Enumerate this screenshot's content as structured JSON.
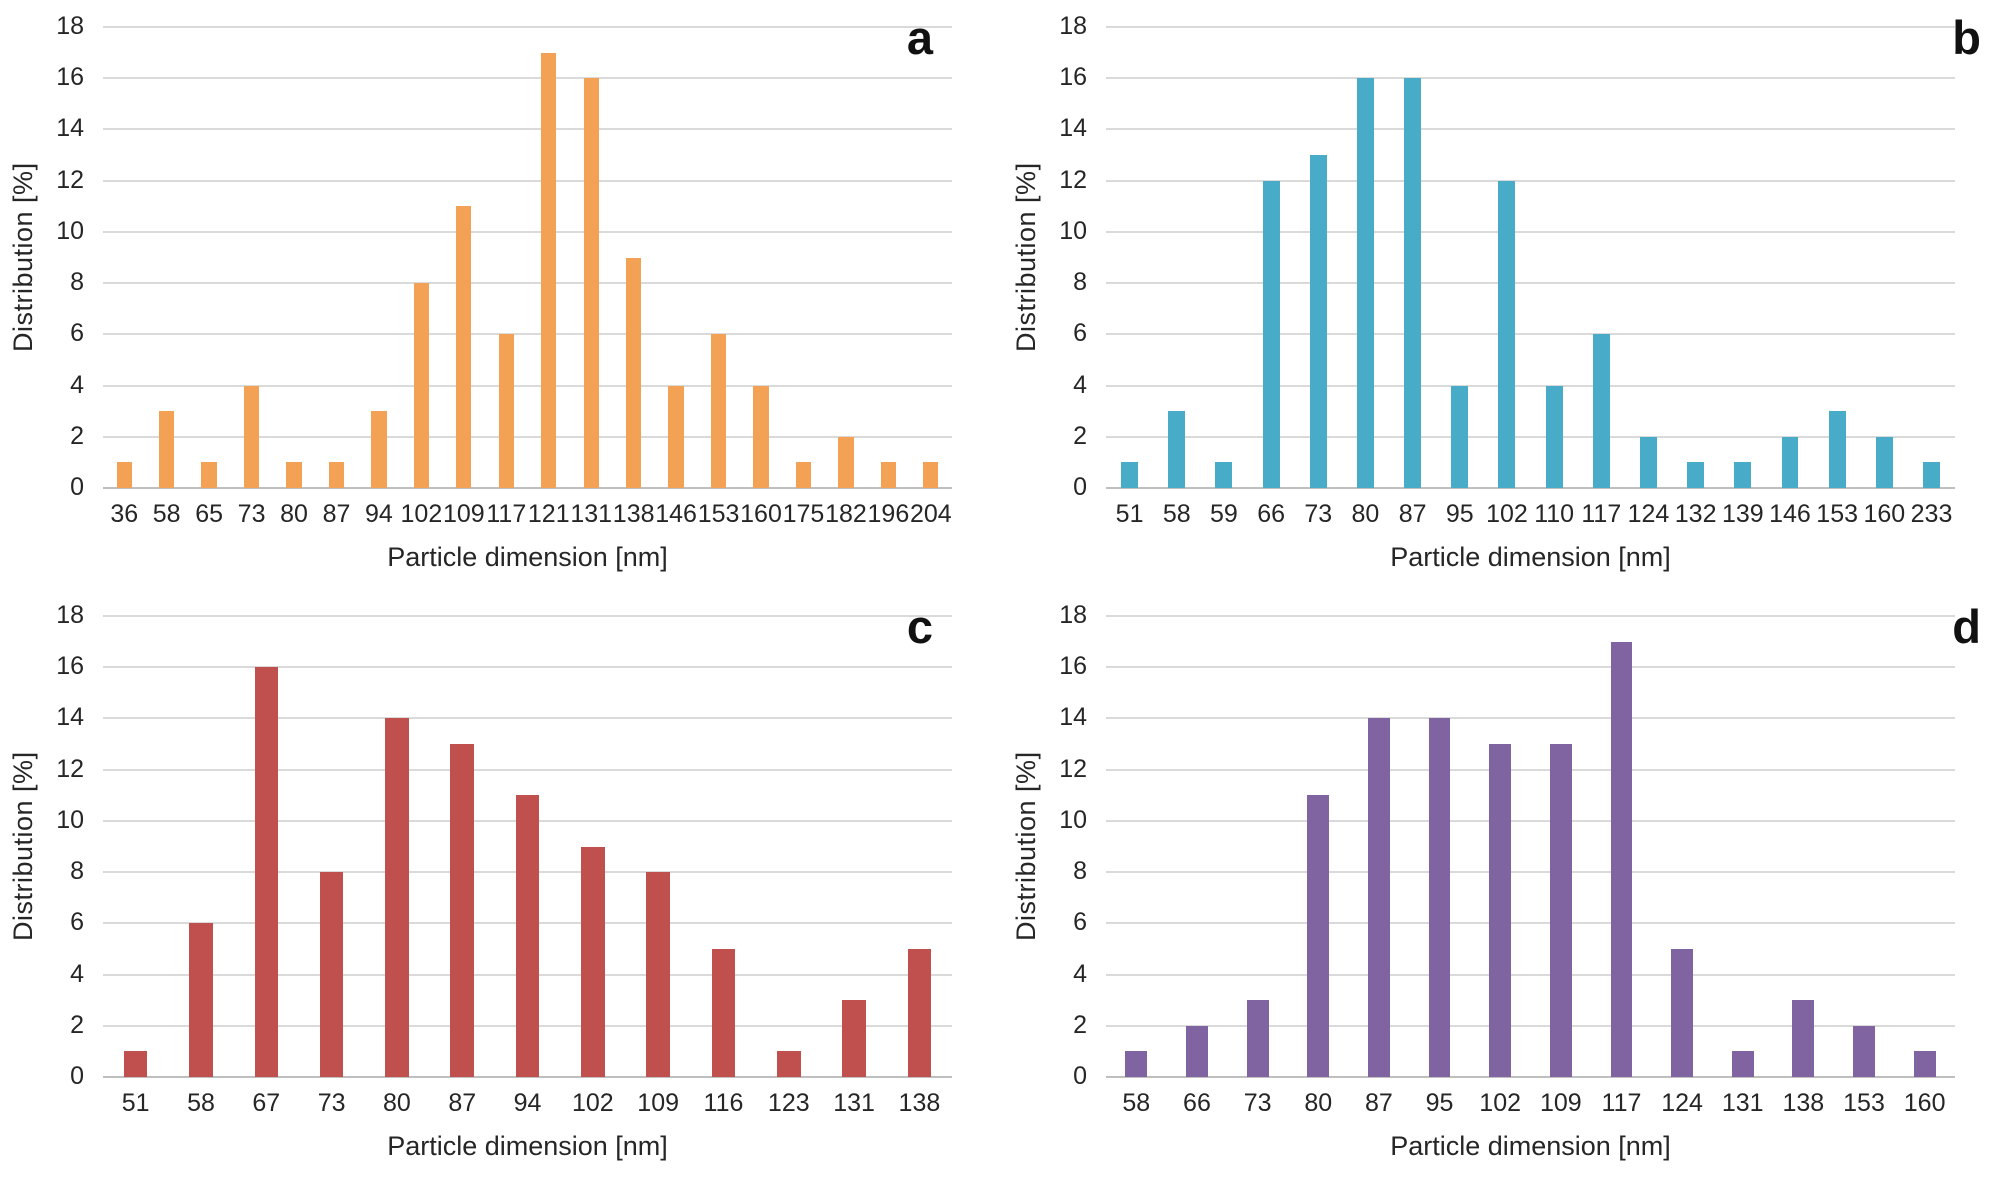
{
  "figure": {
    "ylabel": "Distribution [%]",
    "xlabel": "Particle dimension [nm]",
    "y_ticks": [
      18,
      16,
      14,
      12,
      10,
      8,
      6,
      4,
      2,
      0
    ],
    "colors": {
      "panel_a_bar": "#F2A155",
      "panel_b_bar": "#48ABC8",
      "panel_c_bar": "#C0504D",
      "panel_d_bar": "#8064A2",
      "gridline": "#DADADA",
      "axis_line": "#BFBFBF",
      "text": "#262626"
    }
  },
  "chart_data": [
    {
      "type": "bar",
      "letter": "a",
      "xlabel": "Particle dimension [nm]",
      "ylabel": "Distribution [%]",
      "ylim": [
        0,
        18
      ],
      "y_tick_step": 2,
      "grid": true,
      "legend": false,
      "bar_color": "#F2A155",
      "categories": [
        "36",
        "58",
        "65",
        "73",
        "80",
        "87",
        "94",
        "102",
        "109",
        "117",
        "121",
        "131",
        "138",
        "146",
        "153",
        "160",
        "175",
        "182",
        "196",
        "204"
      ],
      "values": [
        1,
        3,
        1,
        4,
        1,
        1,
        3,
        8,
        11,
        6,
        17,
        16,
        9,
        4,
        6,
        4,
        1,
        2,
        1,
        1
      ]
    },
    {
      "type": "bar",
      "letter": "b",
      "xlabel": "Particle dimension [nm]",
      "ylabel": "Distribution [%]",
      "ylim": [
        0,
        18
      ],
      "y_tick_step": 2,
      "grid": true,
      "legend": false,
      "bar_color": "#48ABC8",
      "categories": [
        "51",
        "58",
        "59",
        "66",
        "73",
        "80",
        "87",
        "95",
        "102",
        "110",
        "117",
        "124",
        "132",
        "139",
        "146",
        "153",
        "160",
        "233"
      ],
      "values": [
        1,
        3,
        1,
        12,
        13,
        16,
        16,
        4,
        12,
        4,
        6,
        2,
        1,
        1,
        2,
        3,
        2,
        1
      ]
    },
    {
      "type": "bar",
      "letter": "c",
      "xlabel": "Particle dimension [nm]",
      "ylabel": "Distribution [%]",
      "ylim": [
        0,
        18
      ],
      "y_tick_step": 2,
      "grid": true,
      "legend": false,
      "bar_color": "#C0504D",
      "categories": [
        "51",
        "58",
        "67",
        "73",
        "80",
        "87",
        "94",
        "102",
        "109",
        "116",
        "123",
        "131",
        "138"
      ],
      "values": [
        1,
        6,
        16,
        8,
        14,
        13,
        11,
        9,
        8,
        5,
        1,
        3,
        5
      ]
    },
    {
      "type": "bar",
      "letter": "d",
      "xlabel": "Particle dimension [nm]",
      "ylabel": "Distribution [%]",
      "ylim": [
        0,
        18
      ],
      "y_tick_step": 2,
      "grid": true,
      "legend": false,
      "bar_color": "#8064A2",
      "categories": [
        "58",
        "66",
        "73",
        "80",
        "87",
        "95",
        "102",
        "109",
        "117",
        "124",
        "131",
        "138",
        "153",
        "160"
      ],
      "values": [
        1,
        2,
        3,
        11,
        14,
        14,
        13,
        13,
        17,
        5,
        1,
        3,
        2,
        1
      ]
    }
  ]
}
